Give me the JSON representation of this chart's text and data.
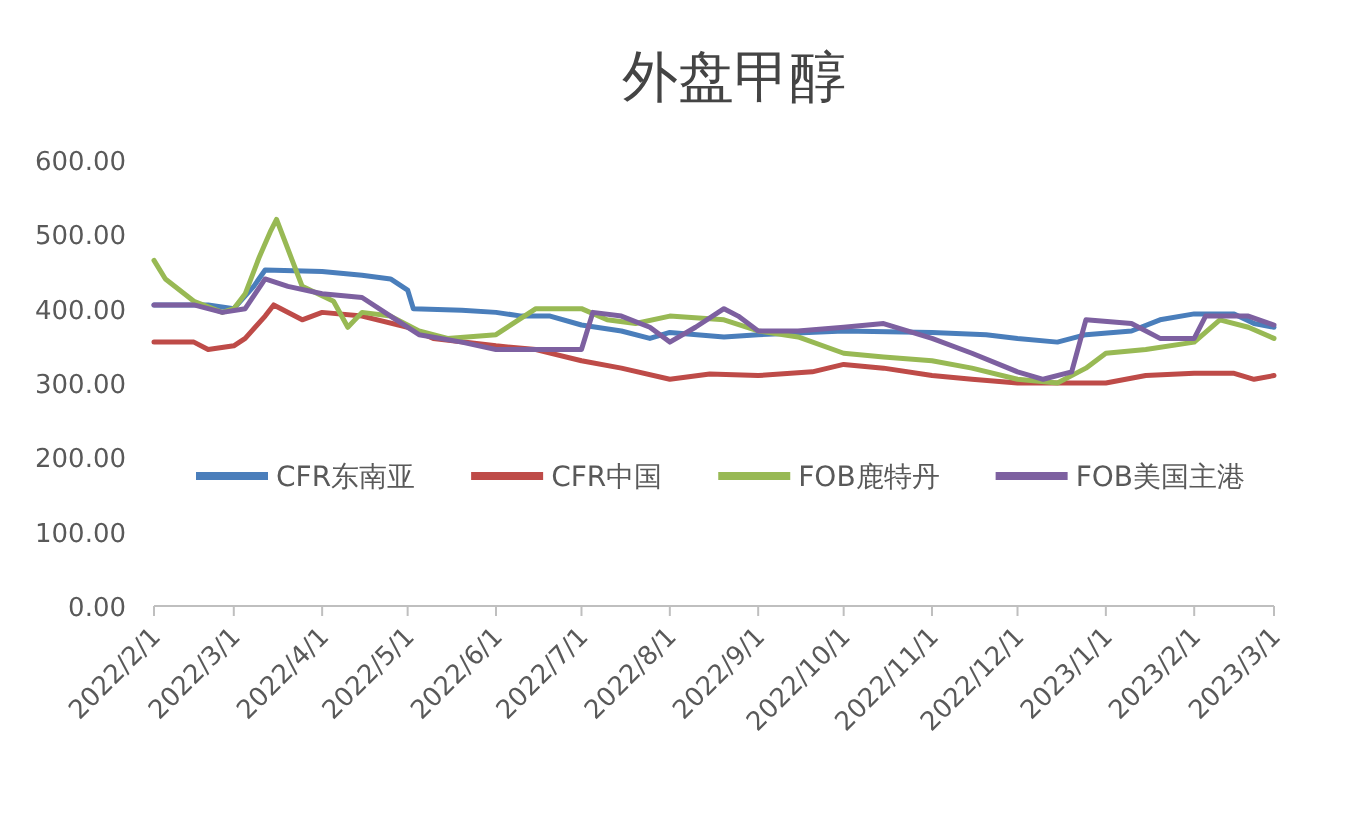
{
  "chart_data": {
    "type": "line",
    "title": "外盘甲醇",
    "xlim": [
      "2022-02-01",
      "2023-03-01"
    ],
    "xticks": [
      {
        "value": "2022-02-01",
        "label": "2022/2/1"
      },
      {
        "value": "2022-03-01",
        "label": "2022/3/1"
      },
      {
        "value": "2022-04-01",
        "label": "2022/4/1"
      },
      {
        "value": "2022-05-01",
        "label": "2022/5/1"
      },
      {
        "value": "2022-06-01",
        "label": "2022/6/1"
      },
      {
        "value": "2022-07-01",
        "label": "2022/7/1"
      },
      {
        "value": "2022-08-01",
        "label": "2022/8/1"
      },
      {
        "value": "2022-09-01",
        "label": "2022/9/1"
      },
      {
        "value": "2022-10-01",
        "label": "2022/10/1"
      },
      {
        "value": "2022-11-01",
        "label": "2022/11/1"
      },
      {
        "value": "2022-12-01",
        "label": "2022/12/1"
      },
      {
        "value": "2023-01-01",
        "label": "2023/1/1"
      },
      {
        "value": "2023-02-01",
        "label": "2023/2/1"
      },
      {
        "value": "2023-03-01",
        "label": "2023/3/1"
      }
    ],
    "ylim": [
      0,
      600
    ],
    "yticks": [
      {
        "value": 0,
        "label": "0.00"
      },
      {
        "value": 100,
        "label": "100.00"
      },
      {
        "value": 200,
        "label": "200.00"
      },
      {
        "value": 300,
        "label": "300.00"
      },
      {
        "value": 400,
        "label": "400.00"
      },
      {
        "value": 500,
        "label": "500.00"
      },
      {
        "value": 600,
        "label": "600.00"
      }
    ],
    "legend": "bottom",
    "marker": "none",
    "line_style": "solid",
    "series": [
      {
        "name": "CFR东南亚",
        "color": "#4a7ebb",
        "x": [
          "2022-02-01",
          "2022-02-20",
          "2022-03-01",
          "2022-03-08",
          "2022-03-12",
          "2022-04-01",
          "2022-04-15",
          "2022-04-25",
          "2022-05-01",
          "2022-05-03",
          "2022-05-20",
          "2022-06-01",
          "2022-06-10",
          "2022-06-20",
          "2022-07-01",
          "2022-07-15",
          "2022-07-25",
          "2022-08-01",
          "2022-08-20",
          "2022-09-01",
          "2022-10-01",
          "2022-11-01",
          "2022-11-20",
          "2022-12-01",
          "2022-12-15",
          "2022-12-25",
          "2023-01-10",
          "2023-01-20",
          "2023-02-01",
          "2023-02-15",
          "2023-02-22",
          "2023-03-01"
        ],
        "values": [
          405,
          405,
          400,
          430,
          452,
          450,
          445,
          440,
          425,
          400,
          398,
          395,
          390,
          390,
          378,
          370,
          360,
          368,
          362,
          365,
          370,
          368,
          365,
          360,
          355,
          365,
          370,
          385,
          393,
          393,
          380,
          375
        ]
      },
      {
        "name": "CFR中国",
        "color": "#be4b48",
        "x": [
          "2022-02-01",
          "2022-02-15",
          "2022-02-20",
          "2022-03-01",
          "2022-03-05",
          "2022-03-12",
          "2022-03-15",
          "2022-03-25",
          "2022-04-01",
          "2022-04-15",
          "2022-05-01",
          "2022-05-10",
          "2022-06-01",
          "2022-06-15",
          "2022-07-01",
          "2022-07-15",
          "2022-08-01",
          "2022-08-15",
          "2022-09-01",
          "2022-09-20",
          "2022-10-01",
          "2022-10-15",
          "2022-11-01",
          "2022-11-15",
          "2022-12-01",
          "2022-12-15",
          "2023-01-01",
          "2023-01-15",
          "2023-02-01",
          "2023-02-15",
          "2023-02-22",
          "2023-03-01"
        ],
        "values": [
          355,
          355,
          345,
          350,
          360,
          390,
          405,
          385,
          395,
          390,
          375,
          360,
          350,
          345,
          330,
          320,
          305,
          312,
          310,
          315,
          325,
          320,
          310,
          305,
          300,
          300,
          300,
          310,
          313,
          313,
          305,
          310
        ]
      },
      {
        "name": "FOB鹿特丹",
        "color": "#98b954",
        "x": [
          "2022-02-01",
          "2022-02-05",
          "2022-02-15",
          "2022-02-25",
          "2022-03-01",
          "2022-03-05",
          "2022-03-10",
          "2022-03-14",
          "2022-03-16",
          "2022-03-20",
          "2022-03-25",
          "2022-04-05",
          "2022-04-10",
          "2022-04-15",
          "2022-04-25",
          "2022-05-05",
          "2022-05-15",
          "2022-06-01",
          "2022-06-15",
          "2022-07-01",
          "2022-07-10",
          "2022-07-20",
          "2022-08-01",
          "2022-08-20",
          "2022-09-01",
          "2022-09-15",
          "2022-10-01",
          "2022-10-15",
          "2022-11-01",
          "2022-11-15",
          "2022-12-01",
          "2022-12-15",
          "2022-12-25",
          "2023-01-01",
          "2023-01-15",
          "2023-02-01",
          "2023-02-10",
          "2023-02-20",
          "2023-03-01"
        ],
        "values": [
          465,
          440,
          410,
          395,
          400,
          420,
          470,
          505,
          520,
          480,
          430,
          410,
          375,
          395,
          390,
          370,
          360,
          365,
          400,
          400,
          385,
          380,
          390,
          385,
          370,
          362,
          340,
          335,
          330,
          320,
          305,
          300,
          320,
          340,
          345,
          355,
          385,
          375,
          360
        ]
      },
      {
        "name": "FOB美国主港",
        "color": "#7d60a0",
        "x": [
          "2022-02-01",
          "2022-02-15",
          "2022-02-25",
          "2022-03-05",
          "2022-03-12",
          "2022-03-20",
          "2022-04-01",
          "2022-04-15",
          "2022-04-25",
          "2022-05-05",
          "2022-05-20",
          "2022-06-01",
          "2022-06-15",
          "2022-07-01",
          "2022-07-05",
          "2022-07-15",
          "2022-07-25",
          "2022-08-01",
          "2022-08-10",
          "2022-08-20",
          "2022-08-25",
          "2022-09-01",
          "2022-09-15",
          "2022-10-01",
          "2022-10-15",
          "2022-11-01",
          "2022-11-15",
          "2022-12-01",
          "2022-12-10",
          "2022-12-20",
          "2022-12-25",
          "2023-01-10",
          "2023-01-20",
          "2023-02-01",
          "2023-02-05",
          "2023-02-20",
          "2023-03-01"
        ],
        "values": [
          405,
          405,
          395,
          400,
          440,
          430,
          420,
          415,
          390,
          365,
          355,
          345,
          345,
          345,
          395,
          390,
          375,
          355,
          375,
          400,
          390,
          370,
          370,
          375,
          380,
          360,
          340,
          315,
          305,
          315,
          385,
          380,
          360,
          360,
          390,
          390,
          378
        ]
      }
    ]
  }
}
